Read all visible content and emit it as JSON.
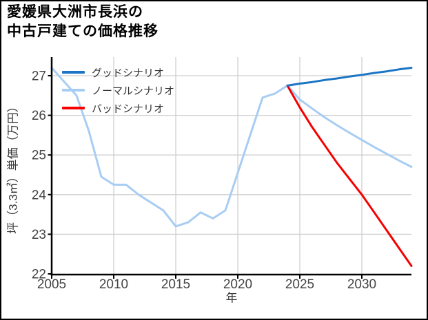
{
  "title": {
    "line1": "愛媛県大洲市長浜の",
    "line2": "中古戸建ての価格推移"
  },
  "legend": {
    "items": [
      {
        "label": "グッドシナリオ",
        "series_key": "good"
      },
      {
        "label": "ノーマルシナリオ",
        "series_key": "normal"
      },
      {
        "label": "バッドシナリオ",
        "series_key": "bad"
      }
    ]
  },
  "chart_data": {
    "type": "line",
    "title": "愛媛県大洲市長浜の中古戸建ての価格推移",
    "x_label": "年",
    "y_label": "坪（3.3㎡）単価（万円）",
    "x_range": [
      2005,
      2034
    ],
    "y_range": [
      22,
      27.47
    ],
    "x_ticks": [
      2005,
      2010,
      2015,
      2020,
      2025,
      2030
    ],
    "y_ticks": [
      22,
      23,
      24,
      25,
      26,
      27
    ],
    "grid": true,
    "legend_position": "upper left",
    "grid_color": "#cfcfcf",
    "tick_color": "#444444",
    "axis_color": "#000000",
    "series": [
      {
        "key": "normal",
        "name": "ノーマルシナリオ",
        "color": "#a8cdf3",
        "x": [
          2005,
          2006,
          2007,
          2008,
          2009,
          2010,
          2011,
          2012,
          2013,
          2014,
          2015,
          2016,
          2017,
          2018,
          2019,
          2020,
          2021,
          2022,
          2023,
          2024,
          2025,
          2026,
          2027,
          2028,
          2029,
          2030,
          2031,
          2032,
          2033,
          2034
        ],
        "y": [
          27.2,
          26.85,
          26.5,
          25.6,
          24.45,
          24.25,
          24.25,
          24.0,
          23.8,
          23.6,
          23.2,
          23.3,
          23.55,
          23.4,
          23.6,
          24.55,
          25.5,
          26.45,
          26.55,
          26.75,
          26.4,
          26.17,
          25.95,
          25.75,
          25.56,
          25.38,
          25.2,
          25.03,
          24.86,
          24.7
        ]
      },
      {
        "key": "bad",
        "name": "バッドシナリオ",
        "color": "#f60000",
        "x": [
          2024,
          2025,
          2026,
          2027,
          2028,
          2029,
          2030,
          2031,
          2032,
          2033,
          2034
        ],
        "y": [
          26.75,
          26.2,
          25.7,
          25.25,
          24.8,
          24.4,
          24.0,
          23.55,
          23.1,
          22.65,
          22.2
        ]
      },
      {
        "key": "good",
        "name": "グッドシナリオ",
        "color": "#1b74c5",
        "x": [
          2024,
          2025,
          2026,
          2027,
          2028,
          2029,
          2030,
          2031,
          2032,
          2033,
          2034
        ],
        "y": [
          26.75,
          26.8,
          26.84,
          26.89,
          26.93,
          26.98,
          27.02,
          27.07,
          27.11,
          27.16,
          27.2
        ]
      }
    ]
  }
}
